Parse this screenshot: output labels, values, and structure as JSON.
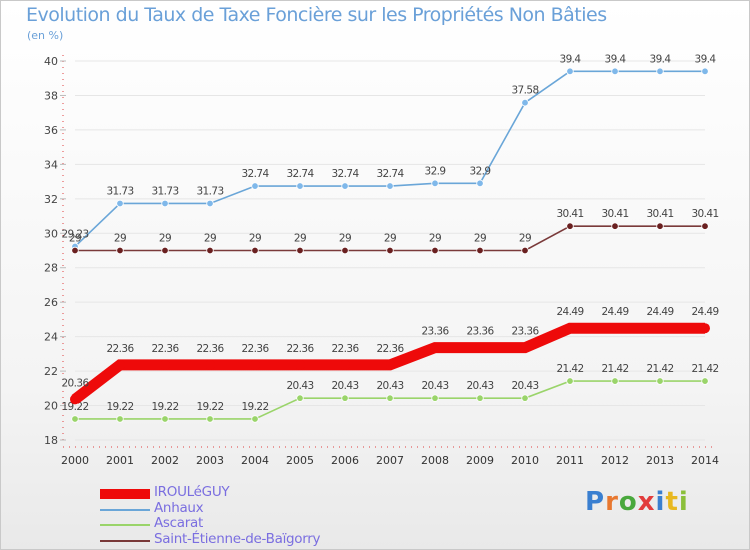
{
  "title": "Evolution du Taux de Taxe Foncière sur les Propriétés Non Bâties",
  "subtitle": "(en %)",
  "logo": {
    "text": "Proxiti",
    "colors": [
      "#3a7fd0",
      "#e87830",
      "#49a83c",
      "#e23c3c",
      "#3a7fd0",
      "#e8b820",
      "#8bbf3a"
    ]
  },
  "chart_data": {
    "type": "line",
    "title": "Evolution du Taux de Taxe Foncière sur les Propriétés Non Bâties",
    "ylabel": "(en %)",
    "xlabel": "",
    "ylim": [
      18,
      40
    ],
    "yticks": [
      18,
      20,
      22,
      24,
      26,
      28,
      30,
      32,
      34,
      36,
      38,
      40
    ],
    "x": [
      "2000",
      "2001",
      "2002",
      "2003",
      "2004",
      "2005",
      "2006",
      "2007",
      "2008",
      "2009",
      "2010",
      "2011",
      "2012",
      "2013",
      "2014"
    ],
    "series": [
      {
        "name": "Anhaux",
        "color": "#6aa6d8",
        "marker_fill": "#7fb8ea",
        "values": [
          29.23,
          31.73,
          31.73,
          31.73,
          32.74,
          32.74,
          32.74,
          32.74,
          32.9,
          32.9,
          37.58,
          39.4,
          39.4,
          39.4,
          39.4
        ],
        "labels": [
          "29.23",
          "31.73",
          "31.73",
          "31.73",
          "32.74",
          "32.74",
          "32.74",
          "32.74",
          "32.9",
          "32.9",
          "37.58",
          "39.4",
          "39.4",
          "39.4",
          "39.4"
        ]
      },
      {
        "name": "Saint-Étienne-de-Baïgorry",
        "color": "#7a3a3a",
        "marker_fill": "#6a2020",
        "values": [
          29,
          29,
          29,
          29,
          29,
          29,
          29,
          29,
          29,
          29,
          29,
          30.41,
          30.41,
          30.41,
          30.41
        ],
        "labels": [
          "29",
          "29",
          "29",
          "29",
          "29",
          "29",
          "29",
          "29",
          "29",
          "29",
          "29",
          "30.41",
          "30.41",
          "30.41",
          "30.41"
        ]
      },
      {
        "name": "Ascarat",
        "color": "#9ad46a",
        "marker_fill": "#9ad46a",
        "values": [
          19.22,
          19.22,
          19.22,
          19.22,
          19.22,
          20.43,
          20.43,
          20.43,
          20.43,
          20.43,
          20.43,
          21.42,
          21.42,
          21.42,
          21.42
        ],
        "labels": [
          "19.22",
          "19.22",
          "19.22",
          "19.22",
          "19.22",
          "20.43",
          "20.43",
          "20.43",
          "20.43",
          "20.43",
          "20.43",
          "21.42",
          "21.42",
          "21.42",
          "21.42"
        ]
      },
      {
        "name": "IROULéGUY",
        "color": "#ee0a0a",
        "marker_fill": "#ee0a0a",
        "values": [
          20.36,
          22.36,
          22.36,
          22.36,
          22.36,
          22.36,
          22.36,
          22.36,
          23.36,
          23.36,
          23.36,
          24.49,
          24.49,
          24.49,
          24.49
        ],
        "labels": [
          "20.36",
          "22.36",
          "22.36",
          "22.36",
          "22.36",
          "22.36",
          "22.36",
          "22.36",
          "23.36",
          "23.36",
          "23.36",
          "24.49",
          "24.49",
          "24.49",
          "24.49"
        ]
      }
    ],
    "legend": [
      "IROULéGUY",
      "Anhaux",
      "Ascarat",
      "Saint-Étienne-de-Baïgorry"
    ],
    "legend_position": "bottom-left"
  }
}
